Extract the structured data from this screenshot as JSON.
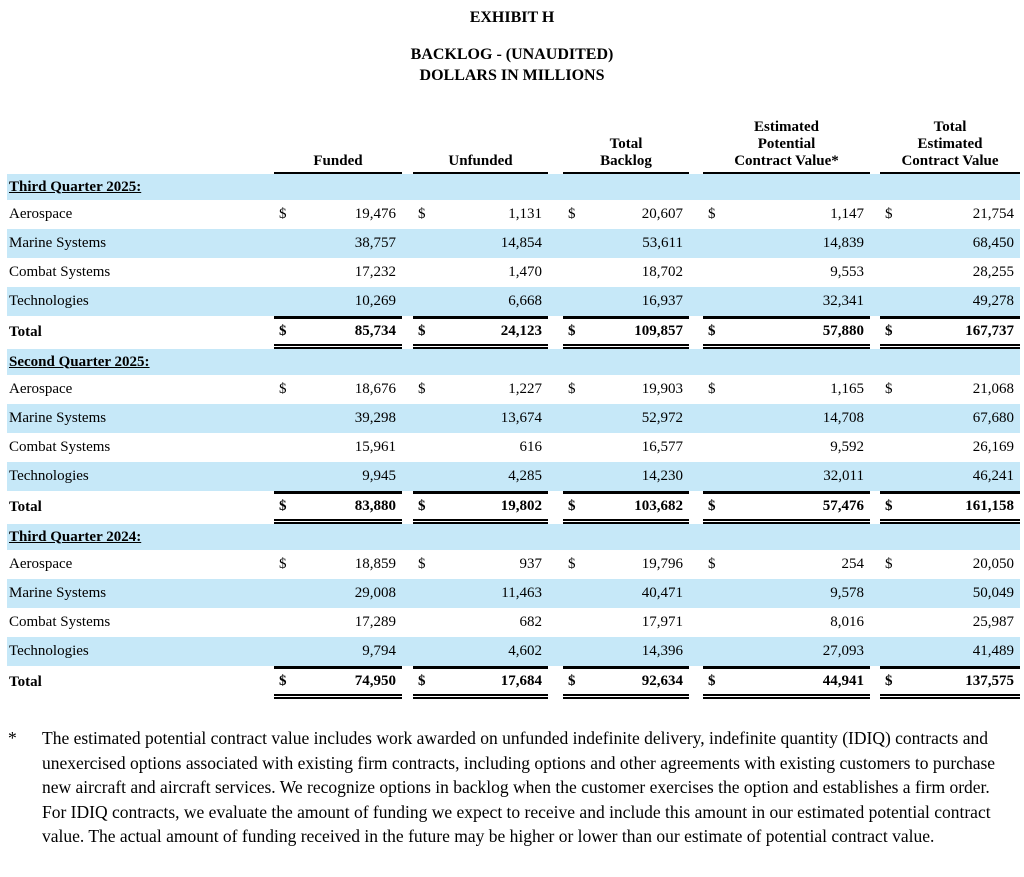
{
  "header": {
    "title": "EXHIBIT H",
    "subtitle": "BACKLOG - (UNAUDITED)",
    "units": "DOLLARS IN MILLIONS"
  },
  "table": {
    "currency_symbol": "$",
    "columns": [
      "Funded",
      "Unfunded",
      "Total\nBacklog",
      "Estimated\nPotential\nContract Value*",
      "Total\nEstimated\nContract Value"
    ],
    "column_keys": [
      "funded",
      "unfunded",
      "total-backlog",
      "estimated-potential-contract-value",
      "total-estimated-contract-value"
    ],
    "sections": [
      {
        "heading": "Third Quarter 2025:",
        "rows": [
          {
            "label": "Aerospace",
            "dollar": true,
            "values": [
              "19,476",
              "1,131",
              "20,607",
              "1,147",
              "21,754"
            ]
          },
          {
            "label": "Marine Systems",
            "dollar": false,
            "values": [
              "38,757",
              "14,854",
              "53,611",
              "14,839",
              "68,450"
            ]
          },
          {
            "label": "Combat Systems",
            "dollar": false,
            "values": [
              "17,232",
              "1,470",
              "18,702",
              "9,553",
              "28,255"
            ]
          },
          {
            "label": "Technologies",
            "dollar": false,
            "values": [
              "10,269",
              "6,668",
              "16,937",
              "32,341",
              "49,278"
            ]
          }
        ],
        "total": {
          "label": "Total",
          "dollar": true,
          "values": [
            "85,734",
            "24,123",
            "109,857",
            "57,880",
            "167,737"
          ]
        }
      },
      {
        "heading": "Second Quarter 2025:",
        "rows": [
          {
            "label": "Aerospace",
            "dollar": true,
            "values": [
              "18,676",
              "1,227",
              "19,903",
              "1,165",
              "21,068"
            ]
          },
          {
            "label": "Marine Systems",
            "dollar": false,
            "values": [
              "39,298",
              "13,674",
              "52,972",
              "14,708",
              "67,680"
            ]
          },
          {
            "label": "Combat Systems",
            "dollar": false,
            "values": [
              "15,961",
              "616",
              "16,577",
              "9,592",
              "26,169"
            ]
          },
          {
            "label": "Technologies",
            "dollar": false,
            "values": [
              "9,945",
              "4,285",
              "14,230",
              "32,011",
              "46,241"
            ]
          }
        ],
        "total": {
          "label": "Total",
          "dollar": true,
          "values": [
            "83,880",
            "19,802",
            "103,682",
            "57,476",
            "161,158"
          ]
        }
      },
      {
        "heading": "Third Quarter 2024:",
        "rows": [
          {
            "label": "Aerospace",
            "dollar": true,
            "values": [
              "18,859",
              "937",
              "19,796",
              "254",
              "20,050"
            ]
          },
          {
            "label": "Marine Systems",
            "dollar": false,
            "values": [
              "29,008",
              "11,463",
              "40,471",
              "9,578",
              "50,049"
            ]
          },
          {
            "label": "Combat Systems",
            "dollar": false,
            "values": [
              "17,289",
              "682",
              "17,971",
              "8,016",
              "25,987"
            ]
          },
          {
            "label": "Technologies",
            "dollar": false,
            "values": [
              "9,794",
              "4,602",
              "14,396",
              "27,093",
              "41,489"
            ]
          }
        ],
        "total": {
          "label": "Total",
          "dollar": true,
          "values": [
            "74,950",
            "17,684",
            "92,634",
            "44,941",
            "137,575"
          ]
        }
      }
    ]
  },
  "footnote": {
    "marker": "*",
    "text": "The estimated potential contract value includes work awarded on unfunded indefinite delivery, indefinite quantity (IDIQ) contracts and unexercised options associated with existing firm contracts, including options and other agreements with existing customers to purchase new aircraft and aircraft services. We recognize options in backlog when the customer exercises the option and establishes a firm order. For IDIQ contracts, we evaluate the amount of funding we expect to receive and include this amount in our estimated potential contract value. The actual amount of funding received in the future may be higher or lower than our estimate of potential contract value."
  },
  "colors": {
    "stripe": "#c6e8f8",
    "text": "#000000",
    "background": "#ffffff"
  }
}
